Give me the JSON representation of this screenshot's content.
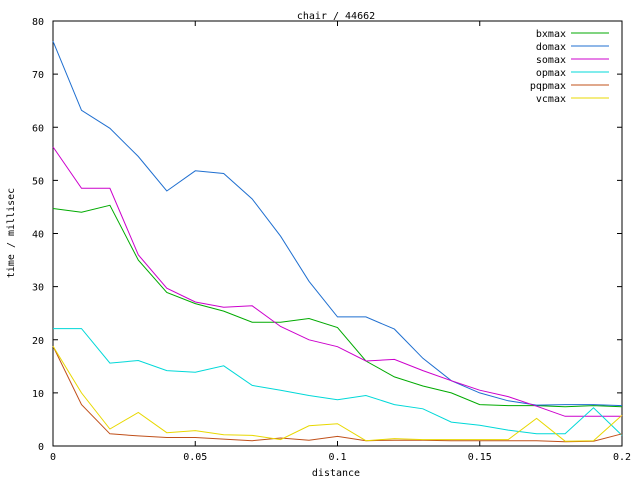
{
  "chart_data": {
    "type": "line",
    "title": "chair / 44662",
    "xlabel": "distance",
    "ylabel": "time / millisec",
    "xlim": [
      0,
      0.2
    ],
    "ylim": [
      0,
      80
    ],
    "x_ticks": [
      0,
      0.05,
      0.1,
      0.15,
      0.2
    ],
    "x_tick_labels": [
      "0",
      "0.05",
      "0.1",
      "0.15",
      "0.2"
    ],
    "y_ticks": [
      0,
      10,
      20,
      30,
      40,
      50,
      60,
      70,
      80
    ],
    "y_tick_labels": [
      "0",
      "10",
      "20",
      "30",
      "40",
      "50",
      "60",
      "70",
      "80"
    ],
    "grid": false,
    "legend_position": "top-right",
    "x": [
      0,
      0.01,
      0.02,
      0.03,
      0.04,
      0.05,
      0.06,
      0.07,
      0.08,
      0.09,
      0.1,
      0.11,
      0.12,
      0.13,
      0.14,
      0.15,
      0.16,
      0.17,
      0.18,
      0.19,
      0.2
    ],
    "series": [
      {
        "name": "bxmax",
        "color": "#00aa00",
        "values": [
          44.7,
          44.0,
          45.3,
          35.0,
          28.9,
          26.8,
          25.4,
          23.3,
          23.3,
          24.0,
          22.3,
          16.0,
          13.0,
          11.3,
          10.0,
          7.8,
          7.6,
          7.6,
          7.4,
          7.6,
          7.4
        ]
      },
      {
        "name": "domax",
        "color": "#1f6fd0",
        "values": [
          76.2,
          63.2,
          59.8,
          54.5,
          48.0,
          51.8,
          51.3,
          46.5,
          39.5,
          31.0,
          24.3,
          24.3,
          22.0,
          16.5,
          12.3,
          10.0,
          8.5,
          7.7,
          7.8,
          7.8,
          7.6
        ]
      },
      {
        "name": "somax",
        "color": "#cc00cc",
        "values": [
          56.3,
          48.5,
          48.5,
          36.0,
          29.7,
          27.1,
          26.1,
          26.4,
          22.5,
          20.0,
          18.7,
          16.0,
          16.3,
          14.2,
          12.3,
          10.5,
          9.3,
          7.5,
          5.6,
          5.6,
          5.6
        ]
      },
      {
        "name": "opmax",
        "color": "#00d8d8",
        "values": [
          22.1,
          22.1,
          15.6,
          16.1,
          14.2,
          13.9,
          15.1,
          11.4,
          10.5,
          9.5,
          8.7,
          9.5,
          7.8,
          7.0,
          4.5,
          3.9,
          3.0,
          2.3,
          2.3,
          7.2,
          2.0
        ]
      },
      {
        "name": "pqpmax",
        "color": "#c0501a",
        "values": [
          18.8,
          7.8,
          2.3,
          1.9,
          1.6,
          1.6,
          1.3,
          1.0,
          1.5,
          1.1,
          1.8,
          1.0,
          1.1,
          1.1,
          1.0,
          1.0,
          1.0,
          1.0,
          0.8,
          0.9,
          2.3
        ]
      },
      {
        "name": "vcmax",
        "color": "#e8d800",
        "values": [
          18.8,
          10.0,
          3.2,
          6.3,
          2.5,
          2.9,
          2.1,
          2.0,
          1.2,
          3.8,
          4.2,
          1.0,
          1.4,
          1.2,
          1.2,
          1.2,
          1.2,
          5.2,
          0.9,
          1.0,
          5.8
        ]
      }
    ]
  }
}
